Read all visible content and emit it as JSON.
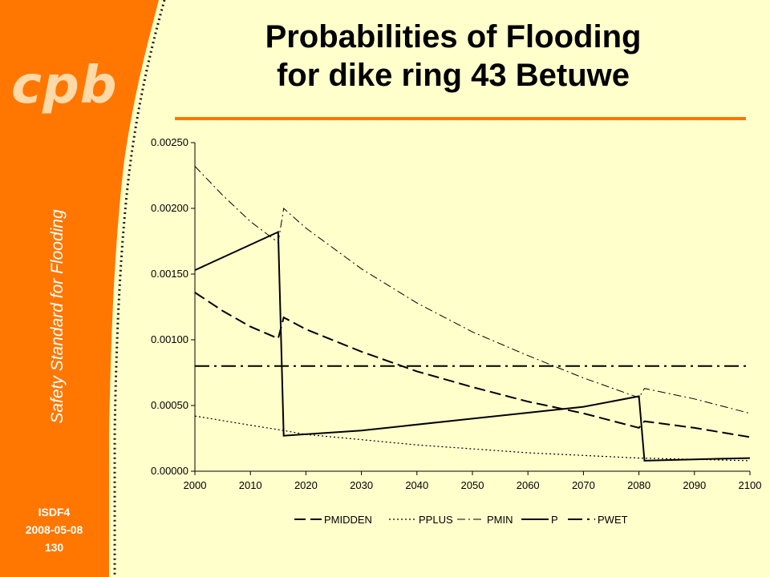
{
  "slide": {
    "logo": "cpb",
    "side_title": "Safety Standard for Flooding",
    "footer": [
      "ISDF4",
      "2008-05-08",
      "130"
    ],
    "title_lines": [
      "Probabilities of Flooding",
      "for dike ring 43 Betuwe"
    ],
    "colors": {
      "orange": "#ff7700",
      "background": "#ffffcc"
    }
  },
  "chart_data": {
    "type": "line",
    "title": "",
    "xlabel": "",
    "ylabel": "",
    "xlim": [
      2000,
      2100
    ],
    "ylim": [
      0,
      0.0025
    ],
    "x_ticks": [
      "2000",
      "2010",
      "2020",
      "2030",
      "2040",
      "2050",
      "2060",
      "2070",
      "2080",
      "2090",
      "2100"
    ],
    "y_ticks": [
      "0.00000",
      "0.00050",
      "0.00100",
      "0.00150",
      "0.00200",
      "0.00250"
    ],
    "legend_position": "bottom",
    "grid": false,
    "series": [
      {
        "name": "PMIDDEN",
        "style": "dash",
        "points": [
          [
            2000,
            0.00136
          ],
          [
            2005,
            0.00122
          ],
          [
            2010,
            0.0011
          ],
          [
            2015,
            0.00101
          ],
          [
            2016,
            0.00117
          ],
          [
            2020,
            0.00108
          ],
          [
            2030,
            0.00091
          ],
          [
            2040,
            0.00076
          ],
          [
            2050,
            0.00064
          ],
          [
            2060,
            0.00053
          ],
          [
            2070,
            0.00044
          ],
          [
            2080,
            0.00033
          ],
          [
            2081,
            0.00038
          ],
          [
            2090,
            0.00033
          ],
          [
            2100,
            0.00026
          ]
        ]
      },
      {
        "name": "PPLUS",
        "style": "dot",
        "points": [
          [
            2000,
            0.00042
          ],
          [
            2010,
            0.00035
          ],
          [
            2016,
            0.00031
          ],
          [
            2020,
            0.00028
          ],
          [
            2030,
            0.00024
          ],
          [
            2040,
            0.0002
          ],
          [
            2050,
            0.00017
          ],
          [
            2060,
            0.00014
          ],
          [
            2070,
            0.00012
          ],
          [
            2080,
            0.0001
          ],
          [
            2090,
            9e-05
          ],
          [
            2100,
            8e-05
          ]
        ]
      },
      {
        "name": "PMIN",
        "style": "dashdot",
        "points": [
          [
            2000,
            0.00232
          ],
          [
            2005,
            0.0021
          ],
          [
            2010,
            0.0019
          ],
          [
            2015,
            0.00174
          ],
          [
            2016,
            0.002
          ],
          [
            2020,
            0.00185
          ],
          [
            2030,
            0.00154
          ],
          [
            2040,
            0.00128
          ],
          [
            2050,
            0.00106
          ],
          [
            2060,
            0.00088
          ],
          [
            2070,
            0.00071
          ],
          [
            2080,
            0.00056
          ],
          [
            2081,
            0.00063
          ],
          [
            2090,
            0.00055
          ],
          [
            2100,
            0.00044
          ]
        ]
      },
      {
        "name": "P",
        "style": "solid",
        "points": [
          [
            2000,
            0.00153
          ],
          [
            2015,
            0.00182
          ],
          [
            2016,
            0.00027
          ],
          [
            2030,
            0.00031
          ],
          [
            2050,
            0.0004
          ],
          [
            2070,
            0.00049
          ],
          [
            2080,
            0.00057
          ],
          [
            2081,
            8e-05
          ],
          [
            2090,
            9e-05
          ],
          [
            2100,
            0.0001
          ]
        ]
      },
      {
        "name": "PWET",
        "style": "longdashdot",
        "points": [
          [
            2000,
            0.0008
          ],
          [
            2100,
            0.0008
          ]
        ]
      }
    ]
  }
}
